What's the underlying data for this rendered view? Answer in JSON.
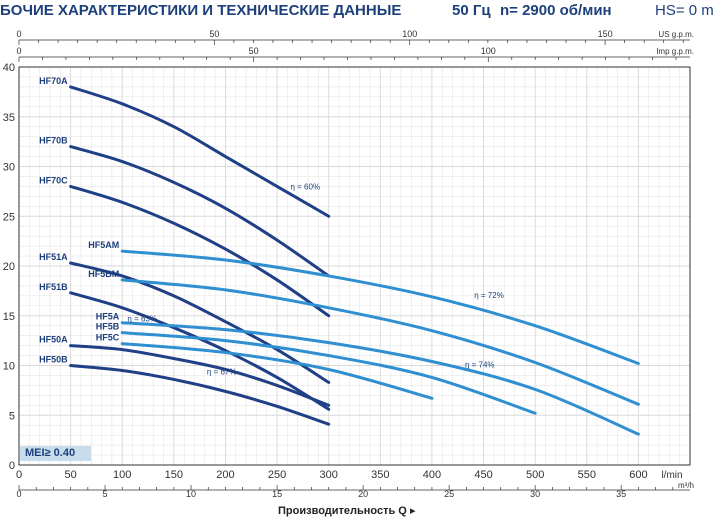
{
  "header": {
    "title": "БОЧИЕ ХАРАКТЕРИСТИКИ И ТЕХНИЧЕСКИЕ ДАННЫЕ",
    "frequency": "50 Гц",
    "speed": "n= 2900 об/мин",
    "hs": "HS= 0 m"
  },
  "mei_label": "MEI≥ 0.40",
  "x_axis_label": "Производительность Q",
  "x_axis_label_arrow": "▸",
  "colors": {
    "dark": "#1f3f86",
    "light": "#2f8fd0",
    "grid": "#d9d9d9",
    "axis": "#333333",
    "text": "#1d3f7c"
  },
  "chart_data": {
    "type": "line",
    "x_unit": "l/min",
    "xlim": [
      0,
      650
    ],
    "ylim": [
      0,
      40
    ],
    "grid": true,
    "x_ticks": [
      0,
      50,
      100,
      150,
      200,
      250,
      300,
      350,
      400,
      450,
      500,
      550,
      600
    ],
    "y_ticks": [
      0,
      5,
      10,
      15,
      20,
      25,
      30,
      35,
      40
    ],
    "secondary_axes": [
      {
        "name": "US g.p.m.",
        "ticks": [
          0,
          50,
          100,
          150
        ],
        "factor": 3.785
      },
      {
        "name": "Imp g.p.m.",
        "ticks": [
          0,
          50,
          100
        ],
        "factor": 4.546
      },
      {
        "name": "m³/h",
        "ticks": [
          0,
          5,
          10,
          15,
          20,
          25,
          30,
          35
        ],
        "factor": 16.667
      }
    ],
    "series": [
      {
        "name": "HF70A",
        "color": "dark",
        "x": [
          50,
          100,
          150,
          200,
          250,
          300
        ],
        "y": [
          38,
          36.3,
          34,
          31,
          28,
          25
        ]
      },
      {
        "name": "HF70B",
        "color": "dark",
        "x": [
          50,
          100,
          150,
          200,
          250,
          300
        ],
        "y": [
          32,
          30.5,
          28.4,
          25.8,
          22.6,
          19
        ]
      },
      {
        "name": "HF70C",
        "color": "dark",
        "x": [
          50,
          100,
          150,
          200,
          250,
          300
        ],
        "y": [
          28,
          26.4,
          24.3,
          21.7,
          18.6,
          15
        ]
      },
      {
        "name": "HF51A",
        "color": "dark",
        "x": [
          50,
          100,
          150,
          200,
          250,
          300
        ],
        "y": [
          20.3,
          19,
          17,
          14.4,
          11.6,
          8.3
        ]
      },
      {
        "name": "HF51B",
        "color": "dark",
        "x": [
          50,
          100,
          150,
          200,
          250,
          300
        ],
        "y": [
          17.3,
          15.8,
          13.8,
          11.5,
          8.8,
          5.6
        ]
      },
      {
        "name": "HF50A",
        "color": "dark",
        "x": [
          50,
          100,
          150,
          200,
          250,
          300
        ],
        "y": [
          12,
          11.6,
          10.7,
          9.6,
          8,
          6
        ]
      },
      {
        "name": "HF50B",
        "color": "dark",
        "x": [
          50,
          100,
          150,
          200,
          250,
          300
        ],
        "y": [
          10,
          9.5,
          8.6,
          7.4,
          5.9,
          4.1
        ]
      },
      {
        "name": "HF5AM",
        "color": "light",
        "x": [
          100,
          200,
          300,
          400,
          500,
          600
        ],
        "y": [
          21.5,
          20.6,
          19,
          16.9,
          14,
          10.2
        ]
      },
      {
        "name": "HF5BM",
        "color": "light",
        "x": [
          100,
          200,
          300,
          400,
          500,
          600
        ],
        "y": [
          18.6,
          17.6,
          15.8,
          13.5,
          10.3,
          6.1
        ]
      },
      {
        "name": "HF5A",
        "color": "light",
        "x": [
          100,
          200,
          300,
          400,
          500,
          600
        ],
        "y": [
          14.3,
          13.6,
          12.3,
          10.4,
          7.6,
          3.1
        ]
      },
      {
        "name": "HF5B",
        "color": "light",
        "x": [
          100,
          200,
          300,
          400,
          500
        ],
        "y": [
          13.3,
          12.5,
          11,
          8.8,
          5.2
        ]
      },
      {
        "name": "HF5C",
        "color": "light",
        "x": [
          100,
          200,
          300,
          400
        ],
        "y": [
          12.2,
          11.3,
          9.6,
          6.7
        ]
      }
    ],
    "annotations": [
      {
        "text": "η = 60%",
        "x": 263,
        "y": 27.7
      },
      {
        "text": "η = 63%",
        "x": 105,
        "y": 14.4
      },
      {
        "text": "η = 67%",
        "x": 182,
        "y": 9.1
      },
      {
        "text": "η = 72%",
        "x": 441,
        "y": 16.8
      },
      {
        "text": "η = 74%",
        "x": 432,
        "y": 9.8
      }
    ]
  }
}
